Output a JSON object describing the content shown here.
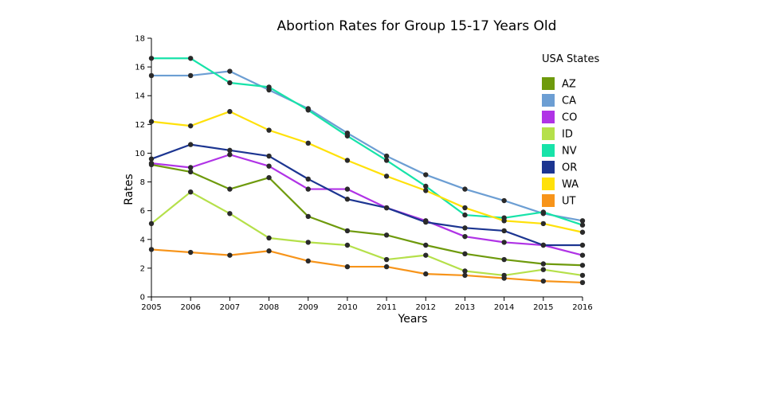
{
  "chart_data": {
    "type": "line",
    "title": "Abortion Rates for Group 15-17 Years Old",
    "xlabel": "Years",
    "ylabel": "Rates",
    "x": [
      2005,
      2006,
      2007,
      2008,
      2009,
      2010,
      2011,
      2012,
      2013,
      2014,
      2015,
      2016
    ],
    "xlim": [
      2005,
      2016
    ],
    "ylim": [
      0,
      18
    ],
    "yticks": [
      0,
      2,
      4,
      6,
      8,
      10,
      12,
      14,
      16,
      18
    ],
    "grid": false,
    "legend": {
      "title": "USA States",
      "placement": "right"
    },
    "series": [
      {
        "name": "AZ",
        "color": "#6e9a0c",
        "values": [
          9.2,
          8.7,
          7.5,
          8.3,
          5.6,
          4.6,
          4.3,
          3.6,
          3.0,
          2.6,
          2.3,
          2.2
        ]
      },
      {
        "name": "CA",
        "color": "#6c9ed3",
        "values": [
          15.4,
          15.4,
          15.7,
          14.4,
          13.1,
          11.4,
          9.8,
          8.5,
          7.5,
          6.7,
          5.8,
          5.3
        ]
      },
      {
        "name": "CO",
        "color": "#b033e6",
        "values": [
          9.3,
          9.0,
          9.9,
          9.1,
          7.5,
          7.5,
          6.2,
          5.3,
          4.2,
          3.8,
          3.6,
          2.9
        ]
      },
      {
        "name": "ID",
        "color": "#b5e04a",
        "values": [
          5.1,
          7.3,
          5.8,
          4.1,
          3.8,
          3.6,
          2.6,
          2.9,
          1.8,
          1.5,
          1.9,
          1.5
        ]
      },
      {
        "name": "NV",
        "color": "#17e3a9",
        "values": [
          16.6,
          16.6,
          14.9,
          14.6,
          13.0,
          11.2,
          9.5,
          7.7,
          5.7,
          5.5,
          5.9,
          5.0
        ]
      },
      {
        "name": "OR",
        "color": "#1c3591",
        "values": [
          9.6,
          10.6,
          10.2,
          9.8,
          8.2,
          6.8,
          6.2,
          5.2,
          4.8,
          4.6,
          3.6,
          3.6
        ]
      },
      {
        "name": "WA",
        "color": "#ffe10a",
        "values": [
          12.2,
          11.9,
          12.9,
          11.6,
          10.7,
          9.5,
          8.4,
          7.4,
          6.2,
          5.3,
          5.1,
          4.5
        ]
      },
      {
        "name": "UT",
        "color": "#f7941a",
        "values": [
          3.3,
          3.1,
          2.9,
          3.2,
          2.5,
          2.1,
          2.1,
          1.6,
          1.5,
          1.3,
          1.1,
          1.0
        ]
      }
    ],
    "marker_color": "#2a2a2a"
  }
}
